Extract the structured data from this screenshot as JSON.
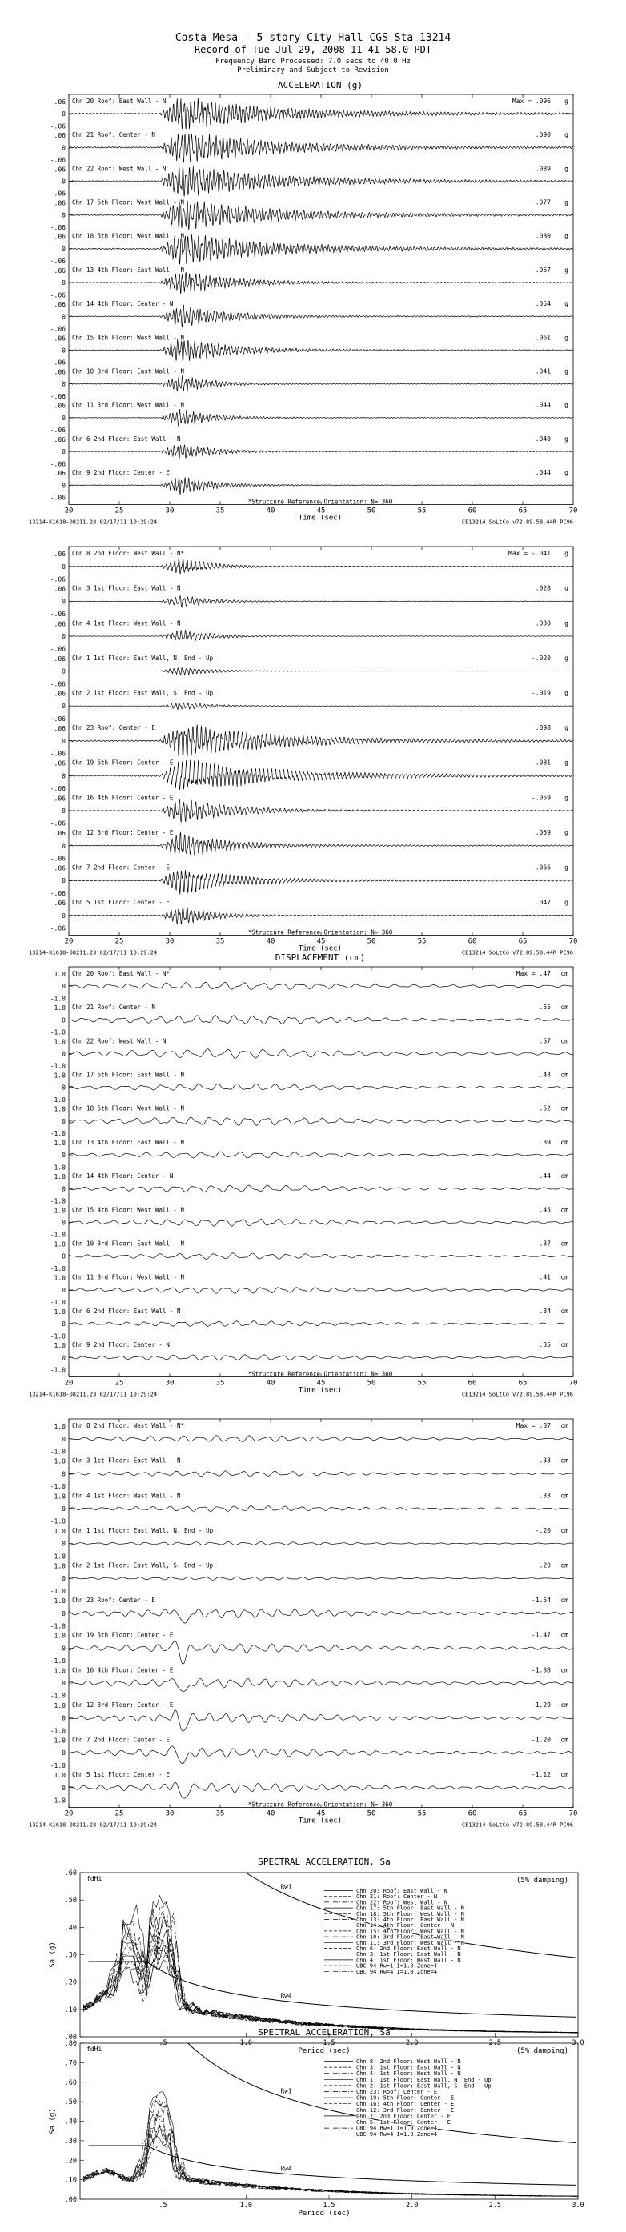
{
  "header": {
    "title": "Costa Mesa - 5-story City Hall     CGS Sta 13214",
    "record": "Record of Tue Jul 29, 2008 11 41 58.0 PDT",
    "band": "Frequency Band Processed: 7.0 secs to 40.0 Hz",
    "prelim": "Preliminary and Subject to Revision"
  },
  "chart_data": [
    {
      "type": "line",
      "title": "ACCELERATION (g)",
      "xlabel": "Time (sec)",
      "xlim": [
        20,
        70
      ],
      "xticks": [
        20,
        25,
        30,
        35,
        40,
        45,
        50,
        55,
        60,
        65,
        70
      ],
      "yticks": [
        ".06",
        "0",
        "-.06"
      ],
      "units": "g",
      "footer_left": "13214-K1618-08211.23 02/17/11 10:29:24",
      "footer_right": "CE13214  SoLtCo  v72.89.58.44R PC96",
      "orientation": "*Structure Reference Orientation: N= 360",
      "series": [
        {
          "name": "Chn 20  Roof: East Wall - N",
          "max": "Max = .096",
          "peak": 0.096,
          "shaking": "strong"
        },
        {
          "name": "Chn 21  Roof: Center - N",
          "max": ".090",
          "peak": 0.09,
          "shaking": "strong"
        },
        {
          "name": "Chn 22  Roof: West Wall - N",
          "max": ".089",
          "peak": 0.089,
          "shaking": "strong"
        },
        {
          "name": "Chn 17  5th Floor: West Wall - N",
          "max": ".077",
          "peak": 0.077,
          "shaking": "strong"
        },
        {
          "name": "Chn 18  5th Floor: West Wall - N",
          "max": ".080",
          "peak": 0.08,
          "shaking": "strong"
        },
        {
          "name": "Chn 13  4th Floor: East Wall - N",
          "max": ".057",
          "peak": 0.057,
          "shaking": "medium"
        },
        {
          "name": "Chn 14  4th Floor: Center - N",
          "max": ".054",
          "peak": 0.054,
          "shaking": "medium"
        },
        {
          "name": "Chn 15  4th Floor: West Wall - N",
          "max": ".061",
          "peak": 0.061,
          "shaking": "medium"
        },
        {
          "name": "Chn 10  3rd Floor: East Wall - N",
          "max": ".041",
          "peak": 0.041,
          "shaking": "low"
        },
        {
          "name": "Chn 11  3rd Floor: West Wall - N",
          "max": ".044",
          "peak": 0.044,
          "shaking": "low"
        },
        {
          "name": "Chn 6  2nd Floor: East Wall - N",
          "max": ".040",
          "peak": 0.04,
          "shaking": "low"
        },
        {
          "name": "Chn 9  2nd Floor: Center - E",
          "max": ".044",
          "peak": 0.044,
          "shaking": "low"
        }
      ]
    },
    {
      "type": "line",
      "title": "",
      "xlabel": "Time (sec)",
      "xlim": [
        20,
        70
      ],
      "xticks": [
        20,
        25,
        30,
        35,
        40,
        45,
        50,
        55,
        60,
        65,
        70
      ],
      "yticks": [
        ".06",
        "0",
        "-.06"
      ],
      "units": "g",
      "footer_left": "13214-K1618-08211.23 02/17/11 10:29:24",
      "footer_right": "CE13214  SoLtCo  v72.89.58.44R PC96",
      "orientation": "*Structure Reference Orientation: N= 360",
      "series": [
        {
          "name": "Chn 8  2nd Floor: West Wall - N*",
          "max": "Max = -.041",
          "peak": 0.041,
          "shaking": "low"
        },
        {
          "name": "Chn 3  1st Floor: East Wall - N",
          "max": ".028",
          "peak": 0.028,
          "shaking": "low"
        },
        {
          "name": "Chn 4  1st Floor: West Wall - N",
          "max": ".030",
          "peak": 0.03,
          "shaking": "low"
        },
        {
          "name": "Chn 1  1st Floor: East Wall, N. End - Up",
          "max": "-.020",
          "peak": 0.02,
          "shaking": "low"
        },
        {
          "name": "Chn 2  1st Floor: East Wall, S. End - Up",
          "max": "-.019",
          "peak": 0.019,
          "shaking": "low"
        },
        {
          "name": "Chn 23  Roof: Center - E",
          "max": ".098",
          "peak": 0.098,
          "shaking": "strong"
        },
        {
          "name": "Chn 19  5th Floor: Center - E",
          "max": ".081",
          "peak": 0.081,
          "shaking": "strong"
        },
        {
          "name": "Chn 16  4th Floor: Center - E",
          "max": "-.059",
          "peak": 0.059,
          "shaking": "medium"
        },
        {
          "name": "Chn 12  3rd Floor: Center - E",
          "max": ".059",
          "peak": 0.059,
          "shaking": "medium"
        },
        {
          "name": "Chn 7  2nd Floor: Center - E",
          "max": ".066",
          "peak": 0.066,
          "shaking": "medium"
        },
        {
          "name": "Chn 5  1st Floor: Center - E",
          "max": ".047",
          "peak": 0.047,
          "shaking": "low"
        }
      ]
    },
    {
      "type": "line",
      "title": "DISPLACEMENT (cm)",
      "xlabel": "Time (sec)",
      "xlim": [
        20,
        70
      ],
      "xticks": [
        20,
        25,
        30,
        35,
        40,
        45,
        50,
        55,
        60,
        65,
        70
      ],
      "yticks": [
        "1.0",
        "0",
        "-1.0"
      ],
      "units": "cm",
      "footer_left": "13214-K1618-08211.23 02/17/11 10:29:24",
      "footer_right": "CE13214  SoLtCo  v72.89.58.44R PC96",
      "orientation": "*Structure Reference Orientation: N= 360",
      "series": [
        {
          "name": "Chn 20  Roof: East Wall - N*",
          "max": "Max = .47",
          "peak": 0.47,
          "shaking": "disp"
        },
        {
          "name": "Chn 21  Roof: Center - N",
          "max": ".55",
          "peak": 0.55,
          "shaking": "disp"
        },
        {
          "name": "Chn 22  Roof: West Wall - N",
          "max": ".57",
          "peak": 0.57,
          "shaking": "disp"
        },
        {
          "name": "Chn 17  5th Floor: East Wall - N",
          "max": ".43",
          "peak": 0.43,
          "shaking": "disp"
        },
        {
          "name": "Chn 18  5th Floor: West Wall - N",
          "max": ".52",
          "peak": 0.52,
          "shaking": "disp"
        },
        {
          "name": "Chn 13  4th Floor: East Wall - N",
          "max": ".39",
          "peak": 0.39,
          "shaking": "disp"
        },
        {
          "name": "Chn 14  4th Floor: Center - N",
          "max": ".44",
          "peak": 0.44,
          "shaking": "disp"
        },
        {
          "name": "Chn 15  4th Floor: West Wall - N",
          "max": ".45",
          "peak": 0.45,
          "shaking": "disp"
        },
        {
          "name": "Chn 10  3rd Floor: East Wall - N",
          "max": ".37",
          "peak": 0.37,
          "shaking": "disp"
        },
        {
          "name": "Chn 11  3rd Floor: West Wall - N",
          "max": ".41",
          "peak": 0.41,
          "shaking": "disp"
        },
        {
          "name": "Chn 6  2nd Floor: East Wall - N",
          "max": ".34",
          "peak": 0.34,
          "shaking": "disp"
        },
        {
          "name": "Chn 9  2nd Floor: Center - N",
          "max": ".35",
          "peak": 0.35,
          "shaking": "disp"
        }
      ]
    },
    {
      "type": "line",
      "title": "",
      "xlabel": "Time (sec)",
      "xlim": [
        20,
        70
      ],
      "xticks": [
        20,
        25,
        30,
        35,
        40,
        45,
        50,
        55,
        60,
        65,
        70
      ],
      "yticks": [
        "1.0",
        "0",
        "-1.0"
      ],
      "units": "cm",
      "footer_left": "13214-K1618-08211.23 02/17/11 10:29:24",
      "footer_right": "CE13214  SoLtCo  v72.89.58.44R PC96",
      "orientation": "*Structure Reference Orientation: N= 360",
      "series": [
        {
          "name": "Chn 8  2nd Floor: West Wall - N*",
          "max": "Max = .37",
          "peak": 0.37,
          "shaking": "disp"
        },
        {
          "name": "Chn 3  1st Floor: East Wall - N",
          "max": ".33",
          "peak": 0.33,
          "shaking": "disp"
        },
        {
          "name": "Chn 4  1st Floor: West Wall - N",
          "max": ".33",
          "peak": 0.33,
          "shaking": "disp"
        },
        {
          "name": "Chn 1  1st Floor: East Wall, N. End - Up",
          "max": "-.20",
          "peak": 0.2,
          "shaking": "disp"
        },
        {
          "name": "Chn 2  1st Floor: East Wall, S. End - Up",
          "max": ".20",
          "peak": 0.2,
          "shaking": "disp"
        },
        {
          "name": "Chn 23  Roof: Center - E",
          "max": "-1.54",
          "peak": 1.54,
          "shaking": "dispE"
        },
        {
          "name": "Chn 19  5th Floor: Center - E",
          "max": "-1.47",
          "peak": 1.47,
          "shaking": "dispE"
        },
        {
          "name": "Chn 16  4th Floor: Center - E",
          "max": "-1.38",
          "peak": 1.38,
          "shaking": "dispE"
        },
        {
          "name": "Chn 12  3rd Floor: Center - E",
          "max": "-1.29",
          "peak": 1.29,
          "shaking": "dispE"
        },
        {
          "name": "Chn 7  2nd Floor: Center - E",
          "max": "-1.20",
          "peak": 1.2,
          "shaking": "dispE"
        },
        {
          "name": "Chn 5  1st Floor: Center - E",
          "max": "-1.12",
          "peak": 1.12,
          "shaking": "dispE"
        }
      ]
    },
    {
      "type": "line",
      "title": "SPECTRAL ACCELERATION, Sa",
      "xlabel": "Period (sec)",
      "ylabel": "Sa (g)",
      "xlim": [
        0,
        3.0
      ],
      "ylim": [
        0,
        0.6
      ],
      "xticks": [
        ".5",
        "1.0",
        "1.5",
        "2.0",
        "2.5",
        "3.0"
      ],
      "yticks": [
        ".00",
        ".10",
        ".20",
        ".30",
        ".40",
        ".50",
        ".60"
      ],
      "damping": "(5% damping)",
      "corner_label": "fdHi",
      "rw_labels": [
        "Rw1",
        "Rw4"
      ],
      "legend": [
        "Chn 20: Roof: East Wall - N",
        "Chn 21: Roof: Center - N",
        "Chn 22: Roof: West Wall - N",
        "Chn 17: 5th Floor: East Wall - N",
        "Chn 18: 5th Floor: West Wall - N",
        "Chn 13: 4th Floor: East Wall - N",
        "Chn 14: 4th Floor: Center - N",
        "Chn 15: 4th Floor: West Wall - N",
        "Chn 10: 3rd Floor: East Wall - N",
        "Chn 11: 3rd Floor: West Wall - N",
        "Chn 6: 2nd Floor: East Wall - N",
        "Chn 3: 1st Floor: East Wall - N",
        "Chn 4: 1st Floor: West Wall - N",
        "UBC 94 Rw=1,I=1.0,Zone=4",
        "UBC 94 Rw=4,I=1.0,Zone=4"
      ],
      "peaks": [
        {
          "period": 0.3,
          "sa": 0.38
        },
        {
          "period": 0.5,
          "sa": 0.46
        }
      ]
    },
    {
      "type": "line",
      "title": "SPECTRAL ACCELERATION, Sa",
      "xlabel": "Period (sec)",
      "ylabel": "Sa (g)",
      "xlim": [
        0,
        3.0
      ],
      "ylim": [
        0,
        0.8
      ],
      "xticks": [
        ".5",
        "1.0",
        "1.5",
        "2.0",
        "2.5",
        "3.0"
      ],
      "yticks": [
        ".00",
        ".10",
        ".20",
        ".30",
        ".40",
        ".50",
        ".60",
        ".70",
        ".80"
      ],
      "damping": "(5% damping)",
      "corner_label": "fdHi",
      "rw_labels": [
        "Rw1",
        "Rw4"
      ],
      "legend": [
        "Chn 8: 2nd Floor: West Wall - N",
        "Chn 3: 1st Floor: East Wall - N",
        "Chn 4: 1st Floor: West Wall - N",
        "Chn 1: 1st Floor: East Wall, N. End - Up",
        "Chn 2: 1st Floor: East Wall, S. End - Up",
        "Chn 23: Roof: Center - E",
        "Chn 19: 5th Floor: Center - E",
        "Chn 16: 4th Floor: Center - E",
        "Chn 12: 3rd Floor: Center - E",
        "Chn 7: 2nd Floor: Center - E",
        "Chn 5: 1st Floor: Center - E",
        "UBC 94 Rw=1,I=1.0,Zone=4",
        "UBC 94 Rw=4,I=1.0,Zone=4"
      ],
      "peaks": [
        {
          "period": 0.48,
          "sa": 0.51
        }
      ]
    }
  ]
}
